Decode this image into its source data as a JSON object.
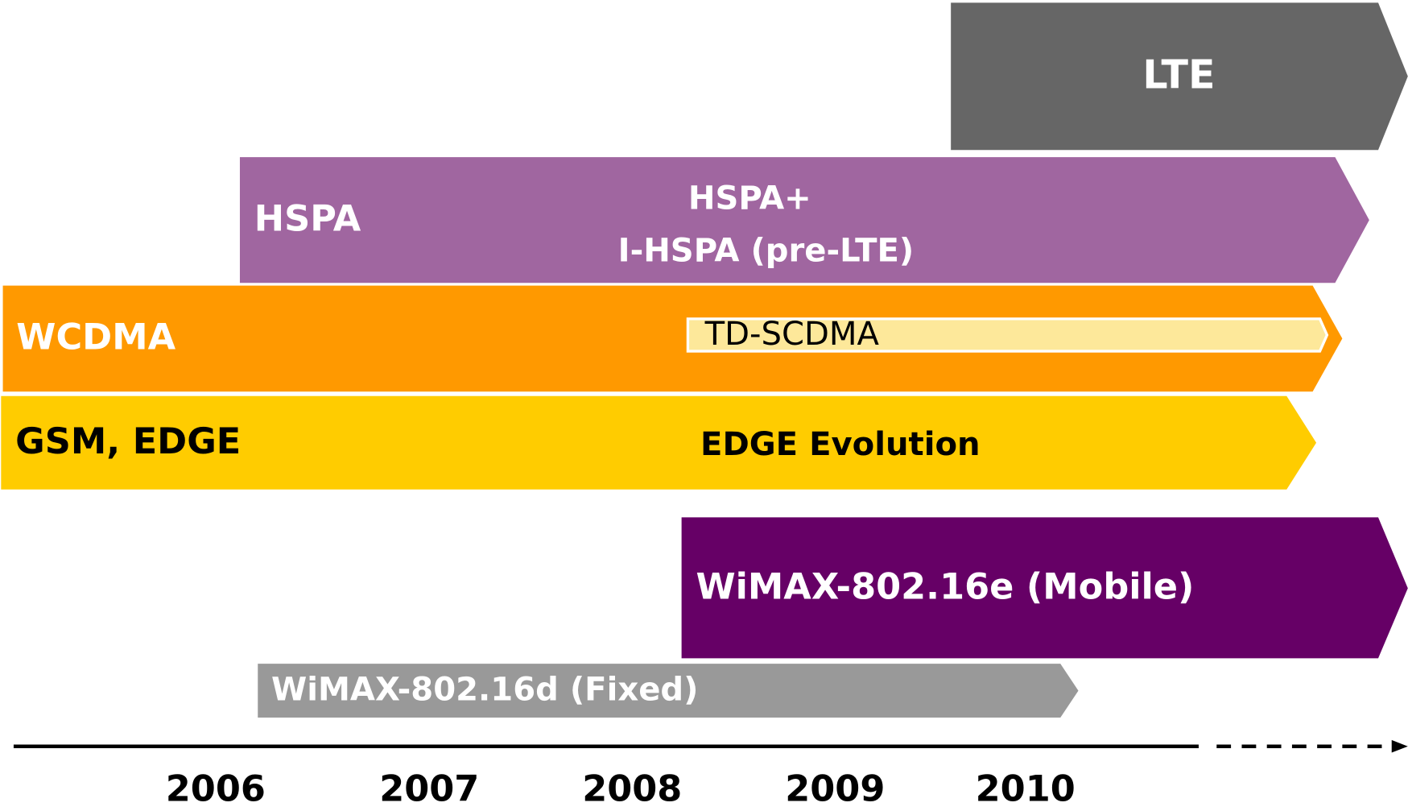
{
  "bars": [
    {
      "labels": [
        "LTE"
      ]
    },
    {
      "labels": [
        "HSPA",
        "HSPA+",
        "I-HSPA (pre-LTE)"
      ]
    },
    {
      "labels": [
        "WCDMA",
        "TD-SCDMA"
      ]
    },
    {
      "labels": [
        "GSM, EDGE",
        "EDGE Evolution"
      ]
    },
    {
      "labels": [
        "WiMAX-802.16e (Mobile)"
      ]
    },
    {
      "labels": [
        "WiMAX-802.16d (Fixed)"
      ]
    }
  ],
  "years": [
    "2006",
    "2007",
    "2008",
    "2009",
    "2010"
  ]
}
